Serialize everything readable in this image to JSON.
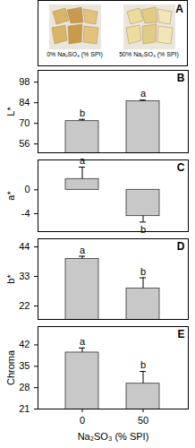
{
  "panel_a": {
    "label": "A",
    "captions": [
      "0% Na₂SO₃ (% SPI)",
      "50% Na₂SO₃ (% SPI)"
    ]
  },
  "chart_data": [
    {
      "type": "bar",
      "title": "B",
      "ylabel": "L*",
      "categories": [
        "0",
        "50"
      ],
      "values": [
        71.5,
        85
      ],
      "errors": [
        1.2,
        0.8
      ],
      "letters": [
        "b",
        "a"
      ],
      "color": "#c8c8c8",
      "ylim": [
        50,
        106
      ],
      "yticks": [
        56,
        70,
        84,
        98
      ],
      "grid": false,
      "tick_labels": "y"
    },
    {
      "type": "bar",
      "title": "C",
      "ylabel": "a*",
      "categories": [
        "0",
        "50"
      ],
      "values": [
        1.8,
        -4.4
      ],
      "errors": [
        2.0,
        1.0
      ],
      "letters": [
        "a",
        "b"
      ],
      "color": "#c8c8c8",
      "ylim": [
        -7,
        5
      ],
      "yticks": [
        -4,
        0
      ],
      "grid": false,
      "tick_labels": "y"
    },
    {
      "type": "bar",
      "title": "D",
      "ylabel": "b*",
      "categories": [
        "0",
        "50"
      ],
      "values": [
        39.5,
        28.5
      ],
      "errors": [
        1.0,
        4.0
      ],
      "letters": [
        "a",
        "b"
      ],
      "color": "#c8c8c8",
      "ylim": [
        17,
        47
      ],
      "yticks": [
        22,
        33,
        44
      ],
      "grid": false,
      "tick_labels": "y"
    },
    {
      "type": "bar",
      "title": "E",
      "ylabel": "Chroma",
      "xlabel": "Na₂SO₃ (% SPI)",
      "categories": [
        "0",
        "50"
      ],
      "values": [
        39.5,
        29.3
      ],
      "errors": [
        1.5,
        4.0
      ],
      "letters": [
        "a",
        "b"
      ],
      "color": "#c8c8c8",
      "ylim": [
        21,
        48
      ],
      "yticks": [
        21,
        28,
        35,
        42
      ],
      "grid": false,
      "tick_labels": true
    }
  ]
}
